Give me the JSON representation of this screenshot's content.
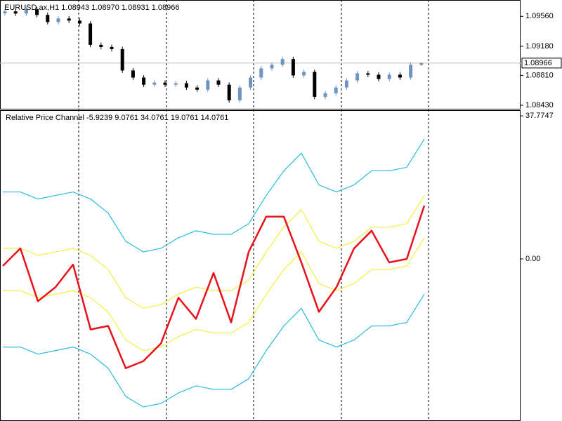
{
  "chart_data": [
    {
      "type": "candlestick",
      "title": "EURUSD.ax,H1  1.08943 1.08970 1.08931 1.08966",
      "up_color": "#6f94c0",
      "down_color": "#000000",
      "open": [
        1.096,
        1.09623,
        1.09596,
        1.0965,
        1.09578,
        1.09487,
        1.09533,
        1.09506,
        1.09469,
        1.09198,
        1.09171,
        1.09144,
        1.08872,
        1.08782,
        1.08691,
        1.08718,
        1.08691,
        1.08709,
        1.08655,
        1.08628,
        1.08745,
        1.08691,
        1.08492,
        1.08655,
        1.08782,
        1.08899,
        1.08944,
        1.09017,
        1.08809,
        1.08854,
        1.08537,
        1.08582,
        1.08655,
        1.08745,
        1.08836,
        1.08818,
        1.08763,
        1.08818,
        1.08782,
        1.08943
      ],
      "high": [
        1.09653,
        1.09653,
        1.0968,
        1.0968,
        1.09608,
        1.09563,
        1.09563,
        1.09536,
        1.09499,
        1.09228,
        1.09201,
        1.09174,
        1.08902,
        1.08812,
        1.08748,
        1.08748,
        1.08739,
        1.08739,
        1.08685,
        1.08775,
        1.08775,
        1.08721,
        1.08685,
        1.08812,
        1.08929,
        1.08974,
        1.09047,
        1.09047,
        1.08884,
        1.08884,
        1.08612,
        1.08685,
        1.08775,
        1.08866,
        1.08866,
        1.08848,
        1.08848,
        1.08848,
        1.08973,
        1.0897
      ],
      "low": [
        1.0957,
        1.09566,
        1.09566,
        1.09548,
        1.09457,
        1.09457,
        1.09476,
        1.09439,
        1.09168,
        1.09141,
        1.09114,
        1.08842,
        1.08752,
        1.08661,
        1.08661,
        1.08661,
        1.08661,
        1.08625,
        1.08598,
        1.08598,
        1.08661,
        1.08462,
        1.08462,
        1.08625,
        1.08752,
        1.08869,
        1.08914,
        1.08779,
        1.08779,
        1.08507,
        1.08507,
        1.08552,
        1.08625,
        1.08715,
        1.08788,
        1.08733,
        1.08733,
        1.08752,
        1.08752,
        1.08931
      ],
      "close": [
        1.09623,
        1.09596,
        1.0965,
        1.09578,
        1.09487,
        1.09533,
        1.09506,
        1.09469,
        1.09198,
        1.09171,
        1.09144,
        1.08872,
        1.08782,
        1.08691,
        1.08718,
        1.08691,
        1.08709,
        1.08655,
        1.08628,
        1.08745,
        1.08691,
        1.08492,
        1.08655,
        1.08782,
        1.08899,
        1.08944,
        1.09017,
        1.08809,
        1.08854,
        1.08537,
        1.08582,
        1.08655,
        1.08745,
        1.08836,
        1.08818,
        1.08763,
        1.08818,
        1.08782,
        1.08943,
        1.08966
      ],
      "ylim": [
        1.08385,
        1.09759
      ],
      "yticks": [
        {
          "value": 1.0956,
          "label": "1.09560"
        },
        {
          "value": 1.0918,
          "label": "1.09180"
        },
        {
          "value": 1.0881,
          "label": "1.08810"
        },
        {
          "value": 1.0843,
          "label": "1.08430"
        }
      ],
      "price_line": 1.08966
    },
    {
      "type": "line",
      "title": "Relative Price Channel -5.9239 9.0761 34.0761 19.0761 14.0761",
      "series": [
        {
          "color": "#2bbbe0",
          "values": [
            17.69,
            17.69,
            15.82,
            16.76,
            17.69,
            15.82,
            12.1,
            4.65,
            1.86,
            2.79,
            5.58,
            7.44,
            6.51,
            6.51,
            9.31,
            16.76,
            23.27,
            27.93,
            19.55,
            17.69,
            19.55,
            23.27,
            23.27,
            24.2,
            31.65
          ]
        },
        {
          "color": "#f5f03c",
          "values": [
            2.8,
            2.8,
            0.93,
            1.87,
            2.8,
            0.93,
            -2.79,
            -10.24,
            -13.03,
            -12.1,
            -9.31,
            -7.45,
            -8.38,
            -8.38,
            -5.58,
            1.87,
            8.38,
            13.04,
            4.66,
            2.8,
            4.66,
            8.38,
            8.38,
            9.31,
            16.76
          ]
        },
        {
          "color": "#f5f03c",
          "values": [
            -8.38,
            -8.38,
            -10.25,
            -9.31,
            -8.38,
            -10.25,
            -13.97,
            -21.42,
            -24.21,
            -23.28,
            -20.49,
            -18.63,
            -19.56,
            -19.56,
            -16.76,
            -9.31,
            -2.8,
            1.86,
            -6.52,
            -8.38,
            -6.52,
            -2.8,
            -2.8,
            -1.87,
            5.58
          ]
        },
        {
          "color": "#2bbbe0",
          "values": [
            -23.27,
            -23.27,
            -25.14,
            -24.2,
            -23.27,
            -25.14,
            -28.86,
            -36.31,
            -39.1,
            -38.17,
            -35.38,
            -33.52,
            -34.45,
            -34.45,
            -31.65,
            -24.2,
            -17.69,
            -13.03,
            -21.41,
            -23.27,
            -21.41,
            -17.69,
            -17.69,
            -16.76,
            -9.31
          ]
        },
        {
          "color": "#e8121a",
          "values": [
            -1.86,
            2.79,
            -11.17,
            -7.45,
            -1.49,
            -18.62,
            -17.69,
            -28.86,
            -27.0,
            -22.35,
            -10.24,
            -15.83,
            -3.72,
            -16.76,
            1.86,
            11.17,
            11.17,
            -0.93,
            -13.97,
            -7.45,
            2.79,
            7.45,
            -0.93,
            0,
            14.08
          ]
        }
      ],
      "ylim": [
        -42.8,
        39.1
      ],
      "yticks": [
        37.7747,
        {
          "value": 0,
          "label": "0.00"
        }
      ]
    }
  ]
}
